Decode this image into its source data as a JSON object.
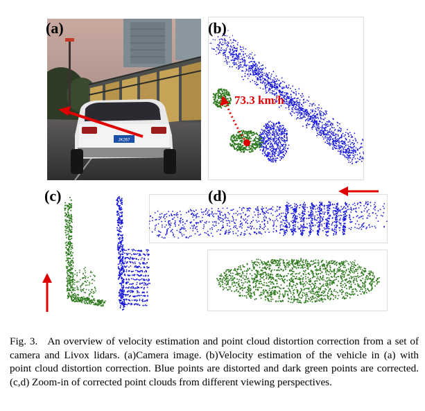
{
  "panels": {
    "a": {
      "label": "(a)"
    },
    "b": {
      "label": "(b)",
      "velocity": "73.3 km/h"
    },
    "c": {
      "label": "(c)"
    },
    "d": {
      "label": "(d)"
    }
  },
  "license_plate": "JK267",
  "caption": {
    "fig": "Fig. 3.",
    "text": "An overview of velocity estimation and point cloud distortion correction from a set of camera and Livox lidars. (a)Camera image. (b)Velocity estimation of the vehicle in (a) with point cloud distortion correction. Blue points are distorted and dark green points are corrected. (c,d) Zoom-in of corrected point clouds from different viewing perspectives."
  },
  "colors": {
    "distorted": "#1515e0",
    "corrected": "#2f7a1f",
    "arrow": "#e00000"
  }
}
